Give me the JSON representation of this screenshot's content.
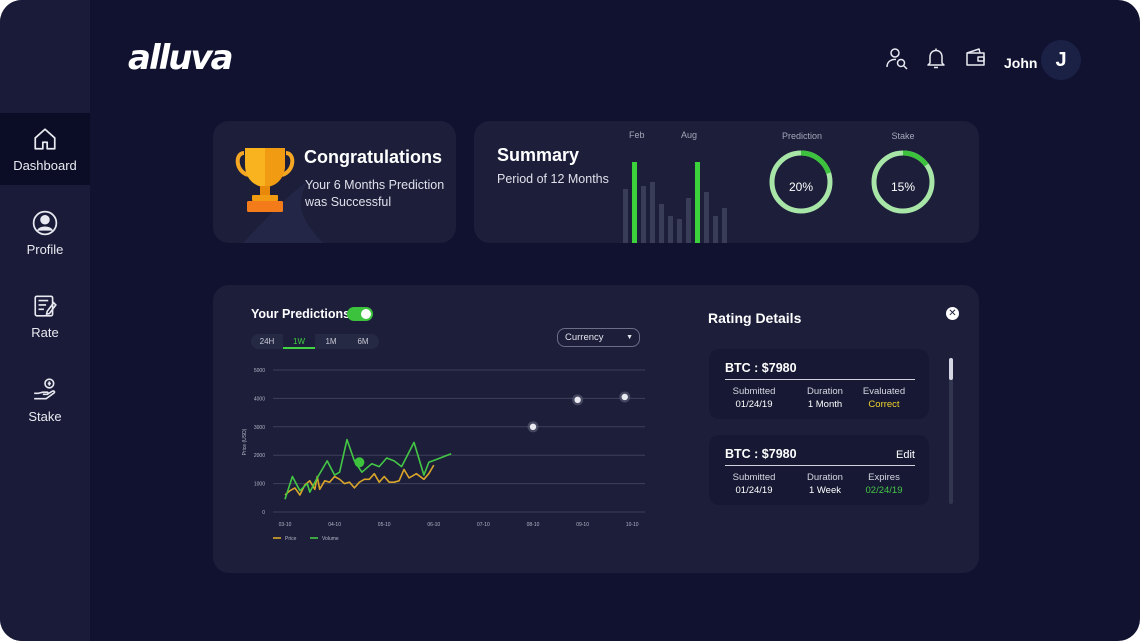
{
  "brand": {
    "logo": "alluva"
  },
  "sidebar": {
    "items": [
      {
        "label": "Dashboard",
        "icon": "home-icon",
        "active": true
      },
      {
        "label": "Profile",
        "icon": "user-icon"
      },
      {
        "label": "Rate",
        "icon": "rate-icon"
      },
      {
        "label": "Stake",
        "icon": "stake-icon"
      }
    ]
  },
  "header": {
    "user_name": "John",
    "avatar_initial": "J",
    "icons": [
      "user-search-icon",
      "bell-icon",
      "wallet-icon"
    ]
  },
  "congrats": {
    "title": "Congratulations",
    "message": "Your 6 Months Prediction was Successful"
  },
  "summary": {
    "title": "Summary",
    "subtitle": "Period of 12 Months",
    "bar_labels": [
      "Feb",
      "Aug"
    ],
    "bars": [
      0.55,
      0.82,
      0.58,
      0.62,
      0.4,
      0.28,
      0.25,
      0.46,
      0.82,
      0.52,
      0.28,
      0.36
    ],
    "highlight": [
      false,
      true,
      false,
      false,
      false,
      false,
      false,
      false,
      true,
      false,
      false,
      false
    ],
    "prediction": {
      "label": "Prediction",
      "value": "20%",
      "fraction": 0.2
    },
    "stake": {
      "label": "Stake",
      "value": "15%",
      "fraction": 0.15
    }
  },
  "predictions": {
    "title": "Your Predictions",
    "tabs": [
      "24H",
      "1W",
      "1M",
      "6M"
    ],
    "active_tab": "1W",
    "currency_label": "Currency"
  },
  "chart_data": {
    "type": "line",
    "ylabel": "Price (USD)",
    "y_ticks": [
      "0",
      "1000",
      "2000",
      "3000",
      "4000",
      "5000"
    ],
    "x_ticks": [
      "03-10",
      "04-10",
      "05-10",
      "06-10",
      "07-10",
      "08-10",
      "09-10",
      "10-10"
    ],
    "ylim": [
      0,
      5000
    ],
    "series": [
      {
        "name": "Price",
        "color": "#d9a52a",
        "points": [
          [
            0,
            600
          ],
          [
            0.1,
            750
          ],
          [
            0.2,
            850
          ],
          [
            0.3,
            600
          ],
          [
            0.4,
            950
          ],
          [
            0.5,
            1100
          ],
          [
            0.6,
            800
          ],
          [
            0.65,
            1250
          ],
          [
            0.7,
            800
          ],
          [
            0.8,
            1100
          ],
          [
            0.9,
            1050
          ],
          [
            1.0,
            1250
          ],
          [
            1.1,
            1150
          ],
          [
            1.2,
            1000
          ],
          [
            1.3,
            1050
          ],
          [
            1.4,
            850
          ],
          [
            1.5,
            1050
          ],
          [
            1.6,
            1150
          ],
          [
            1.7,
            1150
          ],
          [
            1.8,
            1350
          ],
          [
            1.9,
            1050
          ],
          [
            2.0,
            1250
          ],
          [
            2.1,
            1050
          ],
          [
            2.2,
            1050
          ],
          [
            2.3,
            1100
          ],
          [
            2.4,
            1500
          ],
          [
            2.5,
            1200
          ],
          [
            2.65,
            1350
          ],
          [
            2.8,
            1150
          ],
          [
            2.9,
            1350
          ],
          [
            3.0,
            1650
          ]
        ]
      },
      {
        "name": "Volume",
        "color": "#44c744",
        "points": [
          [
            0,
            450
          ],
          [
            0.15,
            1250
          ],
          [
            0.3,
            750
          ],
          [
            0.45,
            1000
          ],
          [
            0.5,
            700
          ],
          [
            0.65,
            1200
          ],
          [
            0.85,
            1800
          ],
          [
            1.0,
            1300
          ],
          [
            1.1,
            1400
          ],
          [
            1.25,
            2550
          ],
          [
            1.4,
            1800
          ],
          [
            1.55,
            1400
          ],
          [
            1.75,
            1700
          ],
          [
            1.9,
            1600
          ],
          [
            2.05,
            1900
          ],
          [
            2.2,
            1800
          ],
          [
            2.35,
            1600
          ],
          [
            2.6,
            2450
          ],
          [
            2.8,
            1300
          ],
          [
            2.9,
            1750
          ],
          [
            3.05,
            1850
          ],
          [
            3.2,
            1950
          ],
          [
            3.35,
            2050
          ]
        ]
      }
    ],
    "highlight_point": [
      1.5,
      1750
    ],
    "future_points": [
      [
        5,
        3000
      ],
      [
        5.9,
        3950
      ],
      [
        6.85,
        4050
      ]
    ]
  },
  "rating": {
    "title": "Rating Details",
    "items": [
      {
        "head": "BTC : $7980",
        "edit": "",
        "cols": [
          [
            "Submitted",
            "01/24/19",
            ""
          ],
          [
            "Duration",
            "1 Month",
            ""
          ],
          [
            "Evaluated",
            "Correct",
            "#f0d22c"
          ]
        ]
      },
      {
        "head": "BTC : $7980",
        "edit": "Edit",
        "cols": [
          [
            "Submitted",
            "01/24/19",
            ""
          ],
          [
            "Duration",
            "1 Week",
            ""
          ],
          [
            "Expires",
            "02/24/19",
            "#44c744"
          ]
        ]
      }
    ]
  }
}
